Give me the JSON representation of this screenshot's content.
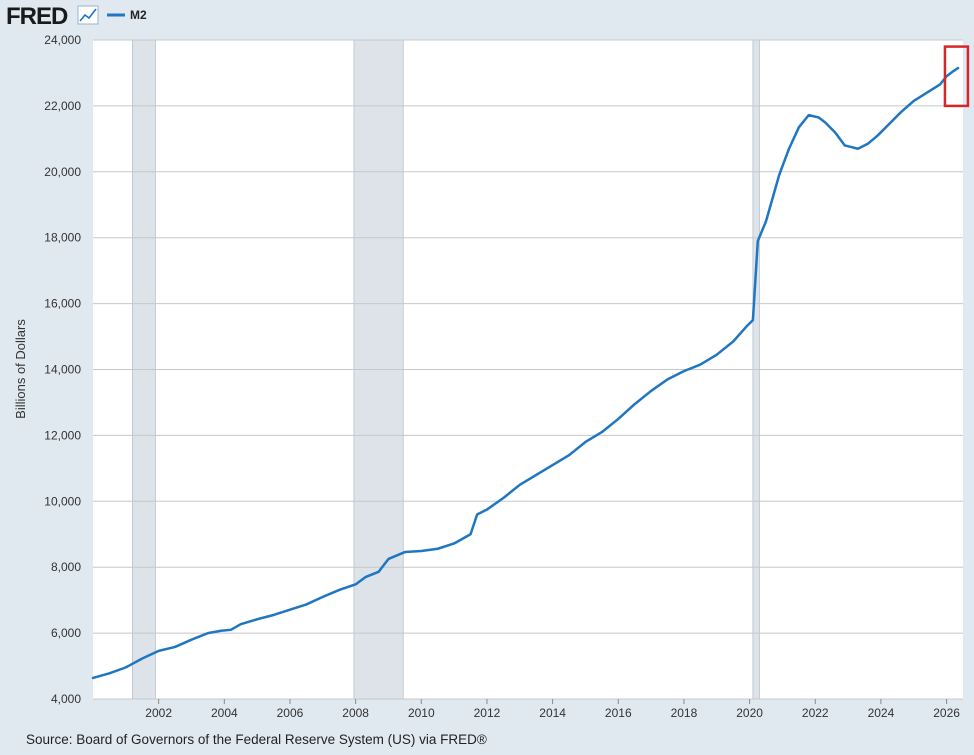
{
  "header": {
    "logo_text": "FRED",
    "logo_icon": "trend-line-icon"
  },
  "source_text": "Source: Board of Governors of the Federal Reserve System (US) via FRED®",
  "colors": {
    "line": "#1f76c3",
    "recession": "#dde3e8",
    "highlight_box": "#d62728",
    "plot_bg": "#ffffff",
    "page_bg": "#e1e9f0",
    "grid": "#c8c8c8"
  },
  "chart_data": {
    "type": "line",
    "title": "",
    "xlabel": "",
    "ylabel": "Billions of Dollars",
    "xlim": [
      2000.0,
      2026.5
    ],
    "ylim": [
      4000,
      24000
    ],
    "x_ticks": [
      2002,
      2004,
      2006,
      2008,
      2010,
      2012,
      2014,
      2016,
      2018,
      2020,
      2022,
      2024,
      2026
    ],
    "x_tick_labels": [
      "2002",
      "2004",
      "2006",
      "2008",
      "2010",
      "2012",
      "2014",
      "2016",
      "2018",
      "2020",
      "2022",
      "2024",
      "2026"
    ],
    "y_ticks": [
      4000,
      6000,
      8000,
      10000,
      12000,
      14000,
      16000,
      18000,
      20000,
      22000,
      24000
    ],
    "y_tick_labels": [
      "4,000",
      "6,000",
      "8,000",
      "10,000",
      "12,000",
      "14,000",
      "16,000",
      "18,000",
      "20,000",
      "22,000",
      "24,000"
    ],
    "grid": true,
    "legend": "top-left",
    "recessions": [
      [
        2001.2,
        2001.9
      ],
      [
        2007.95,
        2009.45
      ],
      [
        2020.1,
        2020.3
      ]
    ],
    "highlight": {
      "x": [
        2025.95,
        2026.65
      ],
      "y": [
        22000,
        23800
      ]
    },
    "series": [
      {
        "name": "M2",
        "x": [
          2000.0,
          2000.5,
          2001.0,
          2001.5,
          2002.0,
          2002.5,
          2003.0,
          2003.5,
          2003.9,
          2004.2,
          2004.5,
          2005.0,
          2005.5,
          2006.0,
          2006.5,
          2007.0,
          2007.5,
          2008.0,
          2008.3,
          2008.7,
          2009.0,
          2009.5,
          2010.0,
          2010.5,
          2011.0,
          2011.5,
          2011.7,
          2012.0,
          2012.5,
          2013.0,
          2013.5,
          2014.0,
          2014.5,
          2015.0,
          2015.5,
          2016.0,
          2016.5,
          2017.0,
          2017.5,
          2018.0,
          2018.5,
          2019.0,
          2019.5,
          2019.9,
          2020.1,
          2020.25,
          2020.5,
          2020.9,
          2021.2,
          2021.5,
          2021.8,
          2022.1,
          2022.3,
          2022.6,
          2022.9,
          2023.1,
          2023.3,
          2023.6,
          2023.9,
          2024.3,
          2024.6,
          2025.0,
          2025.4,
          2025.8,
          2026.0,
          2026.2,
          2026.35
        ],
        "values": [
          4640,
          4780,
          4960,
          5230,
          5460,
          5580,
          5800,
          6000,
          6070,
          6100,
          6270,
          6420,
          6550,
          6710,
          6870,
          7100,
          7310,
          7480,
          7700,
          7860,
          8250,
          8460,
          8490,
          8560,
          8720,
          9000,
          9600,
          9750,
          10100,
          10500,
          10800,
          11100,
          11400,
          11800,
          12100,
          12500,
          12950,
          13350,
          13700,
          13950,
          14150,
          14450,
          14850,
          15300,
          15500,
          17900,
          18500,
          19900,
          20700,
          21350,
          21720,
          21650,
          21500,
          21200,
          20800,
          20750,
          20700,
          20850,
          21100,
          21500,
          21800,
          22150,
          22400,
          22650,
          22900,
          23050,
          23150
        ]
      }
    ]
  }
}
